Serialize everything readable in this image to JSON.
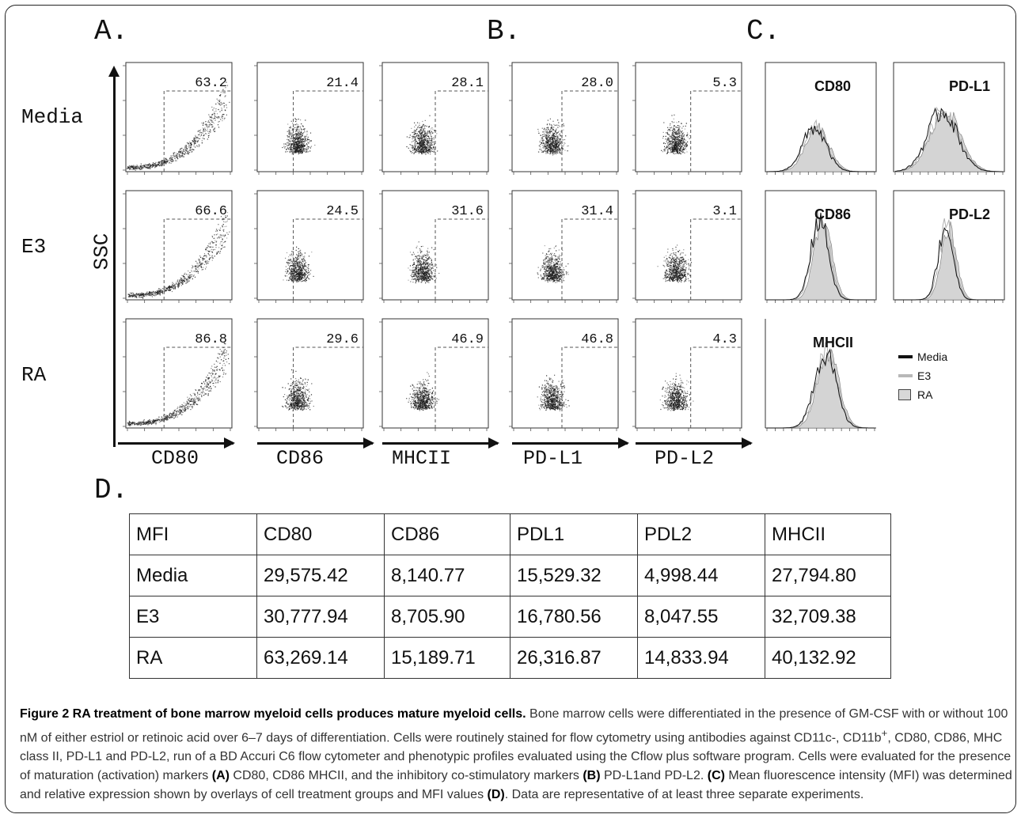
{
  "panel_letters": {
    "a": "A.",
    "b": "B.",
    "c": "C.",
    "d": "D."
  },
  "row_labels": [
    "Media",
    "E3",
    "RA"
  ],
  "y_axis_label": "SSC",
  "x_axis_labels": [
    "CD80",
    "CD86",
    "MHCII",
    "PD-L1",
    "PD-L2"
  ],
  "dot_plots": {
    "gate_values": [
      [
        "63.2",
        "21.4",
        "28.1",
        "28.0",
        "5.3"
      ],
      [
        "66.6",
        "24.5",
        "31.6",
        "31.4",
        "3.1"
      ],
      [
        "86.8",
        "29.6",
        "46.9",
        "46.8",
        "4.3"
      ]
    ]
  },
  "histograms": {
    "markers": [
      "CD80",
      "PD-L1",
      "CD86",
      "PD-L2",
      "MHCII"
    ]
  },
  "legend": [
    {
      "label": "Media",
      "color": "#111111"
    },
    {
      "label": "E3",
      "color": "#b8b8b8"
    },
    {
      "label": "RA",
      "color": "#d8d8d8"
    }
  ],
  "table": {
    "header": [
      "MFI",
      "CD80",
      "CD86",
      "PDL1",
      "PDL2",
      "MHCII"
    ],
    "rows": [
      [
        "Media",
        "29,575.42",
        "8,140.77",
        "15,529.32",
        "4,998.44",
        "27,794.80"
      ],
      [
        "E3",
        "30,777.94",
        "8,705.90",
        "16,780.56",
        "8,047.55",
        "32,709.38"
      ],
      [
        "RA",
        "63,269.14",
        "15,189.71",
        "26,316.87",
        "14,833.94",
        "40,132.92"
      ]
    ]
  },
  "caption": {
    "title": "Figure 2 RA treatment of bone marrow myeloid cells produces mature myeloid cells.",
    "t1": " Bone marrow cells were differentiated in the presence of GM-CSF with or without 100 nM of either estriol or retinoic acid over 6–7 days of differentiation. Cells were routinely stained for flow cytometry using antibodies against CD11c-, CD11b",
    "sup": "+",
    "t2": ", CD80, CD86, MHC class II, PD-L1 and PD-L2, run of a BD Accuri C6 flow cytometer and phenotypic profiles evaluated using the Cflow plus software program. Cells were evaluated for the presence of maturation (activation) markers ",
    "refA": "(A)",
    "t3": " CD80, CD86 MHCII, and the inhibitory co-stimulatory markers ",
    "refB": "(B)",
    "t4": " PD-L1and PD-L2. ",
    "refC": "(C)",
    "t5": " Mean fluorescence intensity (MFI) was determined and relative expression shown by overlays of cell treatment groups and MFI values ",
    "refD": "(D)",
    "t6": ". Data are representative of at least three separate experiments."
  }
}
